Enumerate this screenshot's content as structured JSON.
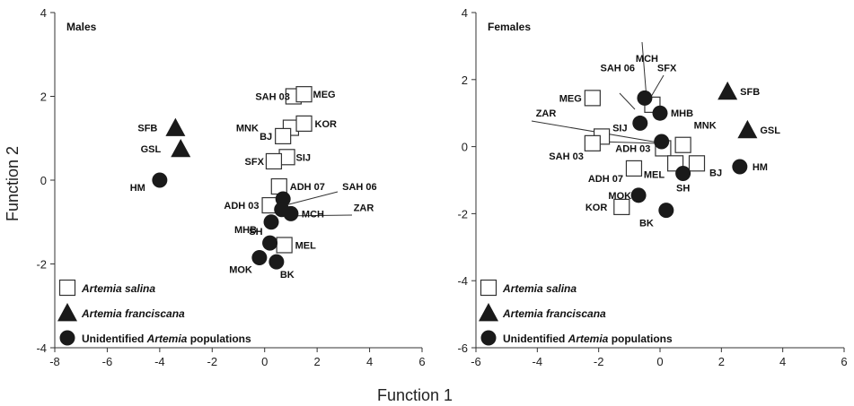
{
  "figure": {
    "xlabel": "Function 1",
    "ylabel": "Function 2"
  },
  "legend": [
    {
      "marker": "square",
      "text": "Artemia salina",
      "italic_part": "Artemia salina"
    },
    {
      "marker": "triangle",
      "text": "Artemia franciscana",
      "italic_part": "Artemia franciscana"
    },
    {
      "marker": "circle",
      "text": "Unidentified Artemia populations",
      "italic_part": "Artemia"
    }
  ],
  "chart_data": [
    {
      "type": "scatter",
      "title": "Males",
      "xlabel": "Function 1",
      "ylabel": "Function 2",
      "xlim": [
        -8,
        6
      ],
      "ylim": [
        -4,
        4
      ],
      "xticks": [
        -8,
        -6,
        -4,
        -2,
        0,
        2,
        4,
        6
      ],
      "yticks": [
        -4,
        -2,
        0,
        2,
        4
      ],
      "grid": false,
      "legend_position": "bottom-left",
      "series": [
        {
          "marker": "square",
          "points": [
            {
              "label": "SAH 03",
              "x": 1.1,
              "y": 2.0
            },
            {
              "label": "MEG",
              "x": 1.5,
              "y": 2.05
            },
            {
              "label": "MNK",
              "x": 1.0,
              "y": 1.25
            },
            {
              "label": "KOR",
              "x": 1.5,
              "y": 1.35
            },
            {
              "label": "BJ",
              "x": 0.7,
              "y": 1.05
            },
            {
              "label": "SIJ",
              "x": 0.85,
              "y": 0.55
            },
            {
              "label": "SFX",
              "x": 0.35,
              "y": 0.45
            },
            {
              "label": "ADH 07",
              "x": 0.55,
              "y": -0.15
            },
            {
              "label": "ADH 03",
              "x": 0.2,
              "y": -0.6
            },
            {
              "label": "MEL",
              "x": 0.75,
              "y": -1.55
            }
          ]
        },
        {
          "marker": "triangle",
          "points": [
            {
              "label": "SFB",
              "x": -3.4,
              "y": 1.25
            },
            {
              "label": "GSL",
              "x": -3.2,
              "y": 0.75
            }
          ]
        },
        {
          "marker": "circle",
          "points": [
            {
              "label": "HM",
              "x": -4.0,
              "y": 0.0
            },
            {
              "label": "SAH 06",
              "x": 0.7,
              "y": -0.45
            },
            {
              "label": "ZAR",
              "x": 0.65,
              "y": -0.7
            },
            {
              "label": "MCH",
              "x": 1.0,
              "y": -0.8
            },
            {
              "label": "MHB",
              "x": 0.25,
              "y": -1.0
            },
            {
              "label": "SH",
              "x": 0.2,
              "y": -1.5
            },
            {
              "label": "MOK",
              "x": -0.2,
              "y": -1.85
            },
            {
              "label": "BK",
              "x": 0.45,
              "y": -1.95
            }
          ]
        }
      ]
    },
    {
      "type": "scatter",
      "title": "Females",
      "xlabel": "Function 1",
      "ylabel": "Function 2",
      "xlim": [
        -6,
        6
      ],
      "ylim": [
        -6,
        4
      ],
      "xticks": [
        -6,
        -4,
        -2,
        0,
        2,
        4,
        6
      ],
      "yticks": [
        -6,
        -4,
        -2,
        0,
        2,
        4
      ],
      "grid": false,
      "legend_position": "bottom-left",
      "series": [
        {
          "marker": "square",
          "points": [
            {
              "label": "MEG",
              "x": -2.2,
              "y": 1.45
            },
            {
              "label": "MCH",
              "x": -0.25,
              "y": 1.25
            },
            {
              "label": "SIJ",
              "x": -1.9,
              "y": 0.3
            },
            {
              "label": "SAH 03",
              "x": -2.2,
              "y": 0.1
            },
            {
              "label": "ADH 03",
              "x": 0.1,
              "y": -0.05
            },
            {
              "label": "MNK",
              "x": 0.75,
              "y": 0.05
            },
            {
              "label": "ADH 07",
              "x": -0.85,
              "y": -0.65
            },
            {
              "label": "MEL",
              "x": 0.5,
              "y": -0.5
            },
            {
              "label": "BJ",
              "x": 1.2,
              "y": -0.5
            },
            {
              "label": "KOR",
              "x": -1.25,
              "y": -1.8
            }
          ]
        },
        {
          "marker": "triangle",
          "points": [
            {
              "label": "SFB",
              "x": 2.2,
              "y": 1.65
            },
            {
              "label": "GSL",
              "x": 2.85,
              "y": 0.5
            }
          ]
        },
        {
          "marker": "circle",
          "points": [
            {
              "label": "SFX",
              "x": -0.5,
              "y": 1.45
            },
            {
              "label": "SAH 06",
              "x": -0.65,
              "y": 0.7
            },
            {
              "label": "MHB",
              "x": 0.0,
              "y": 1.0
            },
            {
              "label": "ZAR",
              "x": 0.05,
              "y": 0.15
            },
            {
              "label": "SH",
              "x": 0.75,
              "y": -0.8
            },
            {
              "label": "HM",
              "x": 2.6,
              "y": -0.6
            },
            {
              "label": "MOK",
              "x": -0.7,
              "y": -1.45
            },
            {
              "label": "BK",
              "x": 0.2,
              "y": -1.9
            }
          ]
        }
      ]
    }
  ]
}
